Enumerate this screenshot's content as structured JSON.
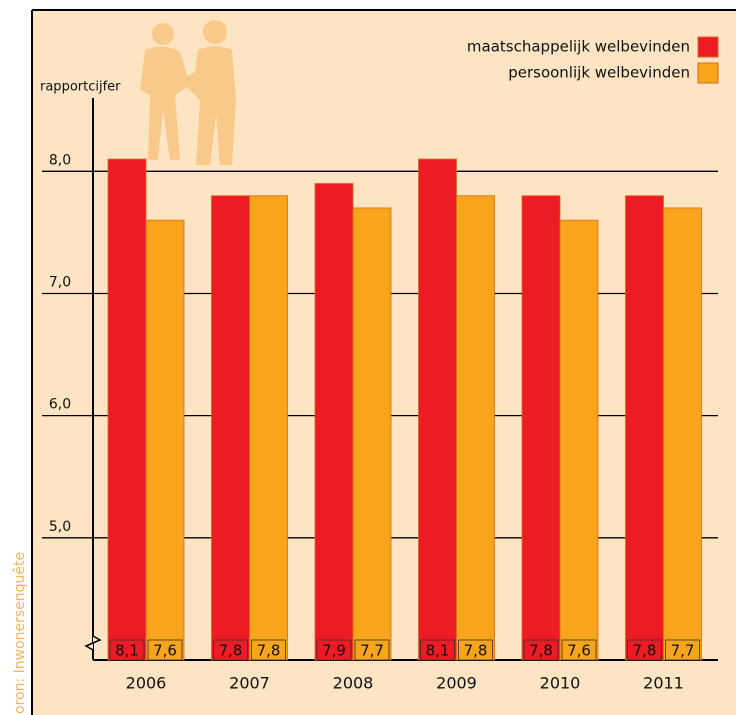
{
  "chart_data": {
    "type": "bar",
    "y_label": "rapportcijfer",
    "source": "oron: Inwonersenquête",
    "categories": [
      "2006",
      "2007",
      "2008",
      "2009",
      "2010",
      "2011"
    ],
    "series": [
      {
        "name": "maatschappelijk welbevinden",
        "color": "#ed1c24",
        "values": [
          8.1,
          7.8,
          7.9,
          8.1,
          7.8,
          7.8
        ],
        "value_labels": [
          "8,1",
          "7,8",
          "7,9",
          "8,1",
          "7,8",
          "7,8"
        ]
      },
      {
        "name": "persoonlijk welbevinden",
        "color": "#f9a51b",
        "values": [
          7.6,
          7.8,
          7.7,
          7.8,
          7.6,
          7.7
        ],
        "value_labels": [
          "7,6",
          "7,8",
          "7,7",
          "7,8",
          "7,6",
          "7,7"
        ]
      }
    ],
    "ylim": [
      4,
      8.6
    ],
    "yticks": [
      {
        "value": 5,
        "label": "5,0"
      },
      {
        "value": 6,
        "label": "6,0"
      },
      {
        "value": 7,
        "label": "7,0"
      },
      {
        "value": 8,
        "label": "8,0"
      }
    ],
    "grid": true,
    "legend": "top-right"
  }
}
